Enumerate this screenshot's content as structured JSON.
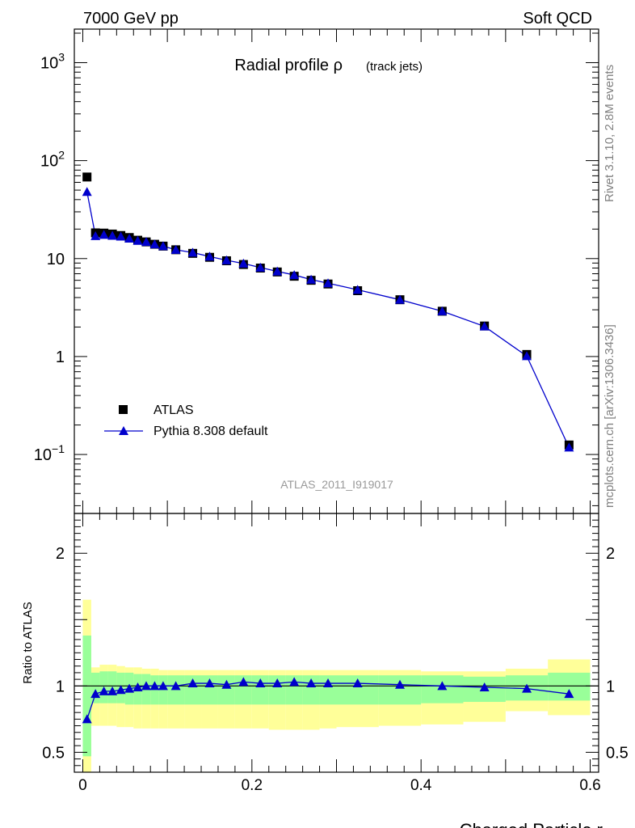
{
  "header": {
    "left": "7000 GeV pp",
    "right": "Soft QCD"
  },
  "side_labels": {
    "top": "Rivet 3.1.10,  2.8M events",
    "bottom": "mcplots.cern.ch [arXiv:1306.3436]"
  },
  "watermark": "ATLAS_2011_I919017",
  "colors": {
    "data": "#000000",
    "mc": "#0000cc",
    "band_inner": "#99ff99",
    "band_outer": "#ffff99"
  },
  "chart_data": [
    {
      "type": "scatter",
      "title": "Radial profile ρ (track jets)",
      "title_main": "Radial profile ρ",
      "title_sub": "(track jets)",
      "xlabel": "Charged Particle r",
      "ylabel": "",
      "xlim": [
        -0.01,
        0.61
      ],
      "ylim": [
        0.025,
        2200
      ],
      "yscale": "log",
      "yticks": [
        "10^-1",
        "1",
        "10",
        "10^2",
        "10^3"
      ],
      "legend_position": "bottom-left",
      "legend": [
        "ATLAS",
        "Pythia 8.308 default"
      ],
      "series": [
        {
          "name": "ATLAS",
          "marker": "square",
          "x": [
            0.005,
            0.015,
            0.025,
            0.035,
            0.045,
            0.055,
            0.065,
            0.075,
            0.085,
            0.095,
            0.11,
            0.13,
            0.15,
            0.17,
            0.19,
            0.21,
            0.23,
            0.25,
            0.27,
            0.29,
            0.325,
            0.375,
            0.425,
            0.475,
            0.525,
            0.575
          ],
          "values": [
            68,
            18.3,
            18.2,
            17.8,
            17.2,
            16.4,
            15.4,
            14.8,
            14.0,
            13.4,
            12.3,
            11.3,
            10.3,
            9.5,
            8.7,
            8.0,
            7.3,
            6.6,
            6.0,
            5.5,
            4.7,
            3.8,
            2.9,
            2.05,
            1.05,
            0.125
          ]
        },
        {
          "name": "Pythia 8.308 default",
          "marker": "triangle",
          "x": [
            0.005,
            0.015,
            0.025,
            0.035,
            0.045,
            0.055,
            0.065,
            0.075,
            0.085,
            0.095,
            0.11,
            0.13,
            0.15,
            0.17,
            0.19,
            0.21,
            0.23,
            0.25,
            0.27,
            0.29,
            0.325,
            0.375,
            0.425,
            0.475,
            0.525,
            0.575
          ],
          "values": [
            48,
            17.0,
            17.5,
            17.1,
            16.8,
            16.0,
            15.2,
            14.8,
            14.0,
            13.4,
            12.3,
            11.5,
            10.5,
            9.6,
            8.9,
            8.1,
            7.4,
            6.8,
            6.1,
            5.6,
            4.8,
            3.8,
            2.9,
            2.03,
            1.01,
            0.118
          ]
        }
      ]
    },
    {
      "type": "line",
      "xlabel": "Charged Particle r",
      "ylabel": "Ratio to ATLAS",
      "xlim": [
        -0.01,
        0.61
      ],
      "ylim": [
        0.35,
        2.3
      ],
      "xticks": [
        "0",
        "0.2",
        "0.4",
        "0.6"
      ],
      "yticks": [
        "0.5",
        "1",
        "2"
      ],
      "reference": 1,
      "bins": [
        [
          0.0,
          0.01
        ],
        [
          0.01,
          0.02
        ],
        [
          0.02,
          0.03
        ],
        [
          0.03,
          0.04
        ],
        [
          0.04,
          0.05
        ],
        [
          0.05,
          0.06
        ],
        [
          0.06,
          0.07
        ],
        [
          0.07,
          0.08
        ],
        [
          0.08,
          0.09
        ],
        [
          0.09,
          0.1
        ],
        [
          0.1,
          0.12
        ],
        [
          0.12,
          0.14
        ],
        [
          0.14,
          0.16
        ],
        [
          0.16,
          0.18
        ],
        [
          0.18,
          0.2
        ],
        [
          0.2,
          0.22
        ],
        [
          0.22,
          0.24
        ],
        [
          0.24,
          0.26
        ],
        [
          0.26,
          0.28
        ],
        [
          0.28,
          0.3
        ],
        [
          0.3,
          0.35
        ],
        [
          0.35,
          0.4
        ],
        [
          0.4,
          0.45
        ],
        [
          0.45,
          0.5
        ],
        [
          0.5,
          0.55
        ],
        [
          0.55,
          0.6
        ]
      ],
      "band_inner": [
        [
          0.47,
          1.38
        ],
        [
          0.87,
          1.1
        ],
        [
          0.87,
          1.11
        ],
        [
          0.87,
          1.11
        ],
        [
          0.87,
          1.1
        ],
        [
          0.86,
          1.1
        ],
        [
          0.86,
          1.09
        ],
        [
          0.86,
          1.09
        ],
        [
          0.86,
          1.08
        ],
        [
          0.86,
          1.08
        ],
        [
          0.86,
          1.08
        ],
        [
          0.86,
          1.08
        ],
        [
          0.86,
          1.08
        ],
        [
          0.86,
          1.08
        ],
        [
          0.86,
          1.08
        ],
        [
          0.86,
          1.08
        ],
        [
          0.86,
          1.08
        ],
        [
          0.86,
          1.08
        ],
        [
          0.86,
          1.08
        ],
        [
          0.86,
          1.08
        ],
        [
          0.86,
          1.08
        ],
        [
          0.86,
          1.08
        ],
        [
          0.87,
          1.08
        ],
        [
          0.88,
          1.07
        ],
        [
          0.89,
          1.08
        ],
        [
          0.89,
          1.1
        ]
      ],
      "band_outer": [
        [
          0.35,
          1.65
        ],
        [
          0.7,
          1.14
        ],
        [
          0.7,
          1.16
        ],
        [
          0.7,
          1.16
        ],
        [
          0.69,
          1.15
        ],
        [
          0.69,
          1.14
        ],
        [
          0.68,
          1.14
        ],
        [
          0.68,
          1.13
        ],
        [
          0.68,
          1.13
        ],
        [
          0.68,
          1.12
        ],
        [
          0.68,
          1.12
        ],
        [
          0.68,
          1.12
        ],
        [
          0.68,
          1.12
        ],
        [
          0.68,
          1.12
        ],
        [
          0.68,
          1.12
        ],
        [
          0.68,
          1.12
        ],
        [
          0.67,
          1.12
        ],
        [
          0.67,
          1.12
        ],
        [
          0.67,
          1.12
        ],
        [
          0.68,
          1.12
        ],
        [
          0.69,
          1.12
        ],
        [
          0.7,
          1.12
        ],
        [
          0.71,
          1.11
        ],
        [
          0.73,
          1.11
        ],
        [
          0.81,
          1.13
        ],
        [
          0.78,
          1.2
        ]
      ],
      "series": [
        {
          "name": "Pythia 8.308 default",
          "x": [
            0.005,
            0.015,
            0.025,
            0.035,
            0.045,
            0.055,
            0.065,
            0.075,
            0.085,
            0.095,
            0.11,
            0.13,
            0.15,
            0.17,
            0.19,
            0.21,
            0.23,
            0.25,
            0.27,
            0.29,
            0.325,
            0.375,
            0.425,
            0.475,
            0.525,
            0.575
          ],
          "values": [
            0.75,
            0.94,
            0.96,
            0.96,
            0.97,
            0.98,
            0.99,
            1.0,
            1.0,
            1.0,
            1.0,
            1.02,
            1.02,
            1.01,
            1.03,
            1.02,
            1.02,
            1.03,
            1.02,
            1.02,
            1.02,
            1.01,
            1.0,
            0.99,
            0.98,
            0.94
          ]
        }
      ]
    }
  ]
}
